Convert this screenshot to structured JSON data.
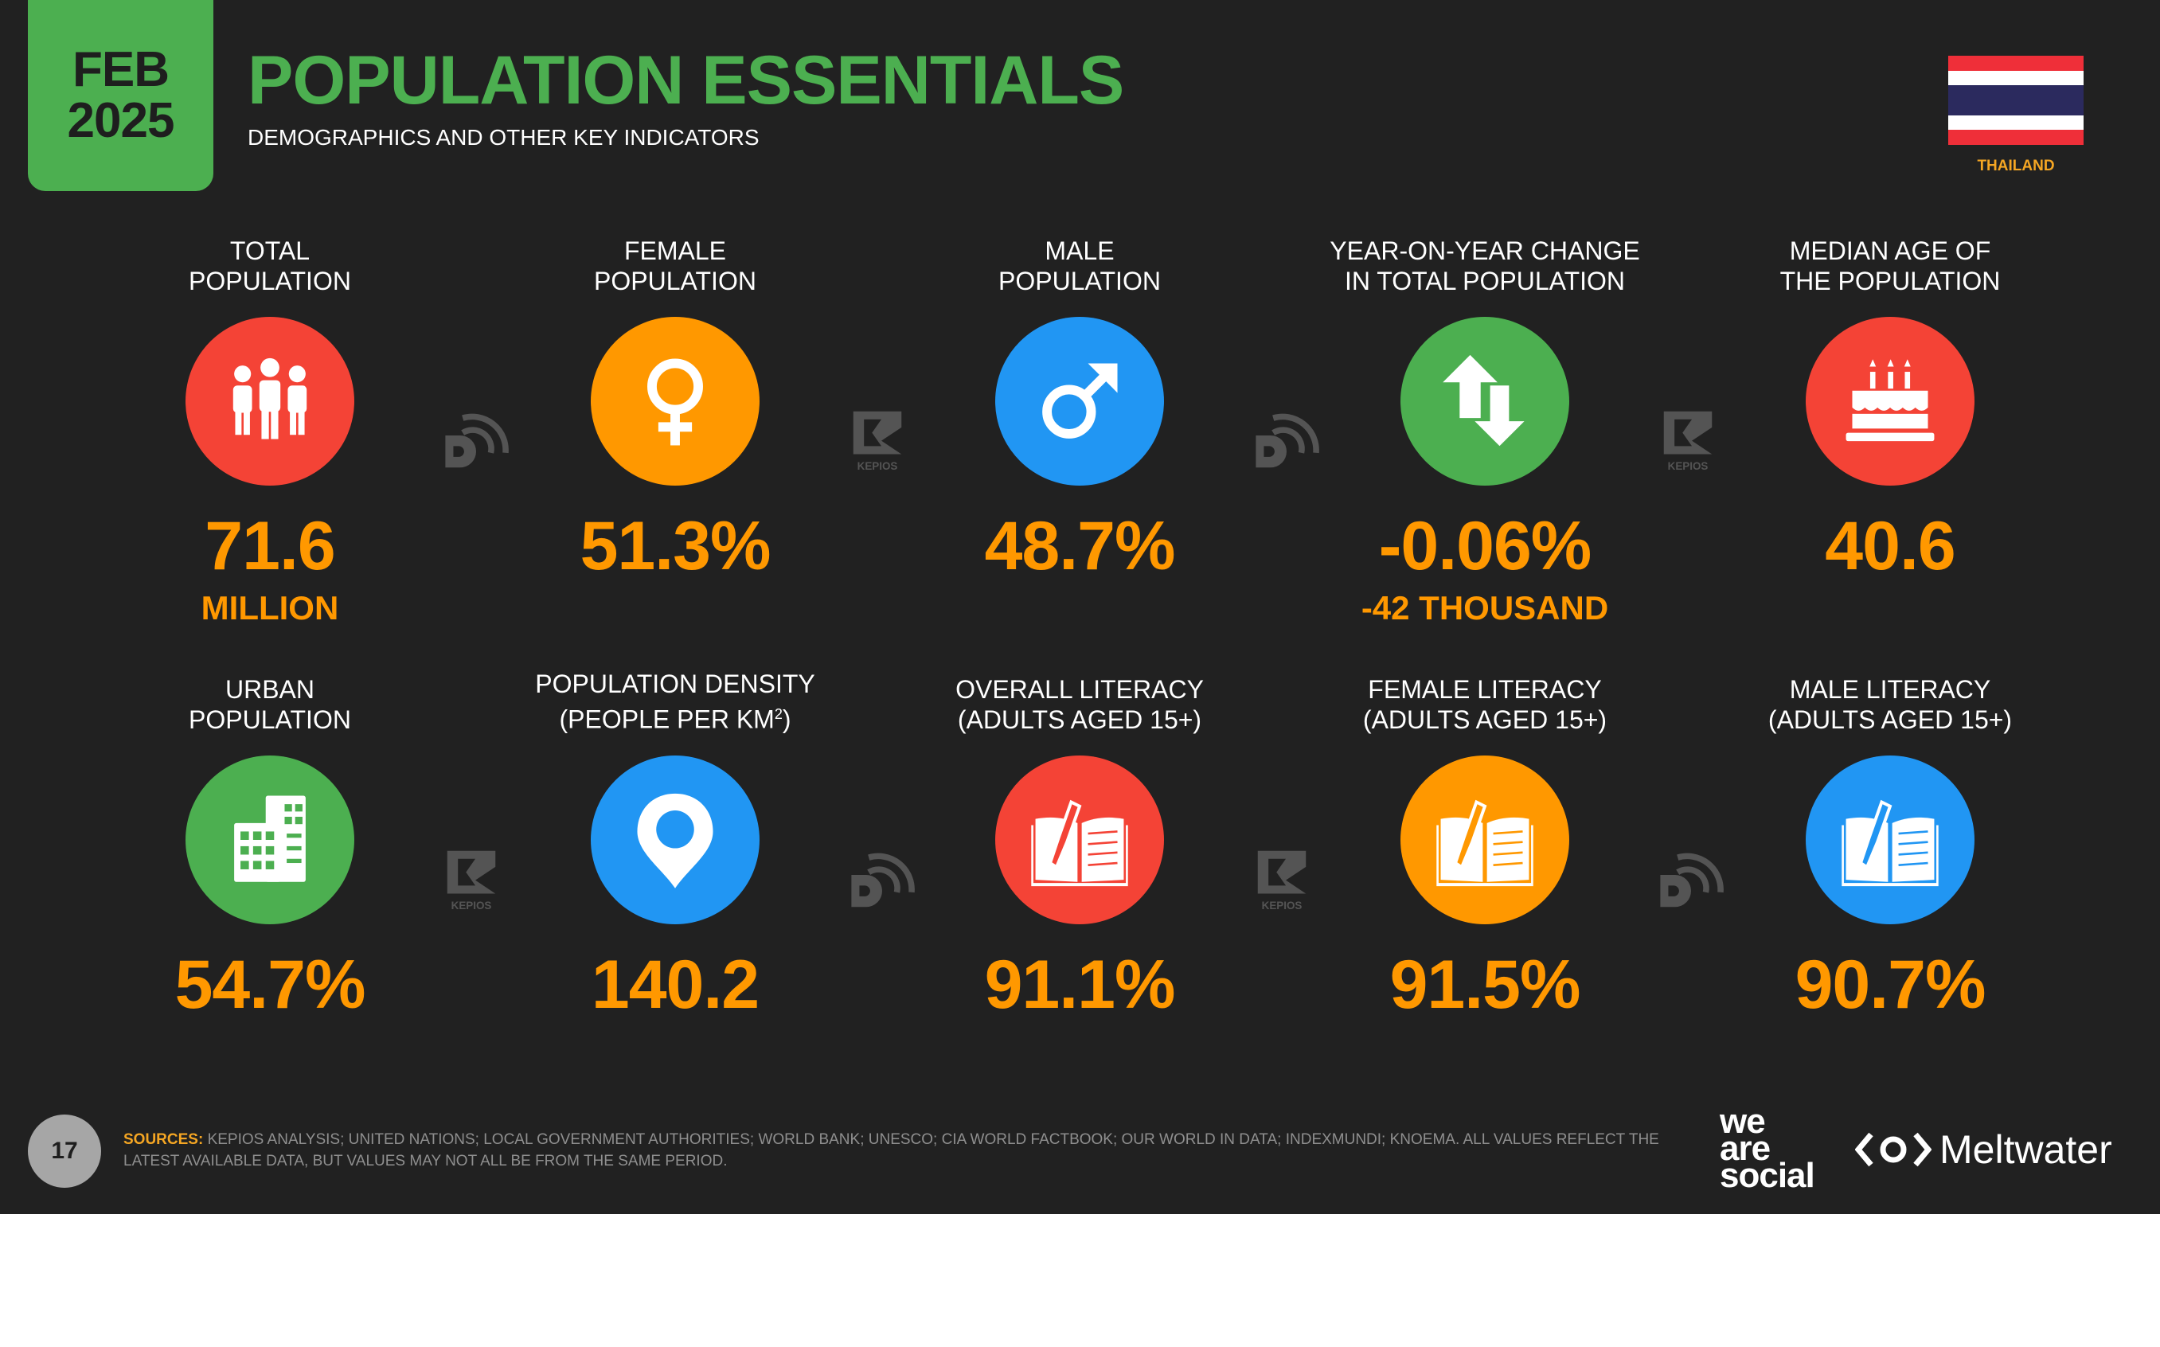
{
  "header": {
    "month": "FEB",
    "year": "2025",
    "title": "POPULATION ESSENTIALS",
    "subtitle": "DEMOGRAPHICS AND OTHER KEY INDICATORS",
    "country": "THAILAND"
  },
  "stats": {
    "total_population": {
      "label_1": "TOTAL",
      "label_2": "POPULATION",
      "value": "71.6",
      "sub": "MILLION",
      "icon": "people-icon"
    },
    "female_population": {
      "label_1": "FEMALE",
      "label_2": "POPULATION",
      "value": "51.3%",
      "icon": "female-symbol-icon"
    },
    "male_population": {
      "label_1": "MALE",
      "label_2": "POPULATION",
      "value": "48.7%",
      "icon": "male-symbol-icon"
    },
    "yoy_change": {
      "label_1": "YEAR-ON-YEAR CHANGE",
      "label_2": "IN TOTAL POPULATION",
      "value": "-0.06%",
      "sub": "-42 THOUSAND",
      "icon": "up-down-arrows-icon"
    },
    "median_age": {
      "label_1": "MEDIAN AGE OF",
      "label_2": "THE POPULATION",
      "value": "40.6",
      "icon": "birthday-cake-icon"
    },
    "urban_population": {
      "label_1": "URBAN",
      "label_2": "POPULATION",
      "value": "54.7%",
      "icon": "buildings-icon"
    },
    "population_density": {
      "label_1": "POPULATION DENSITY",
      "label_2_pre": "(PEOPLE PER KM",
      "label_2_sup": "2",
      "label_2_post": ")",
      "value": "140.2",
      "icon": "map-pin-icon"
    },
    "overall_literacy": {
      "label_1": "OVERALL LITERACY",
      "label_2": "(ADULTS AGED 15+)",
      "value": "91.1%",
      "icon": "book-pencil-icon"
    },
    "female_literacy": {
      "label_1": "FEMALE LITERACY",
      "label_2": "(ADULTS AGED 15+)",
      "value": "91.5%",
      "icon": "book-pencil-icon"
    },
    "male_literacy": {
      "label_1": "MALE LITERACY",
      "label_2": "(ADULTS AGED 15+)",
      "value": "90.7%",
      "icon": "book-pencil-icon"
    }
  },
  "watermarks": {
    "kepios": "KEPIOS"
  },
  "footer": {
    "page_number": "17",
    "sources_label": "SOURCES:",
    "sources_text": "KEPIOS ANALYSIS; UNITED NATIONS; LOCAL GOVERNMENT AUTHORITIES; WORLD BANK; UNESCO; CIA WORLD FACTBOOK; OUR WORLD IN DATA; INDEXMUNDI; KNOEMA. ALL VALUES REFLECT THE LATEST AVAILABLE DATA, BUT VALUES MAY NOT ALL BE FROM THE SAME PERIOD.",
    "brand_1_line_1": "we",
    "brand_1_line_2": "are",
    "brand_1_line_3": "social",
    "brand_2": "Meltwater"
  },
  "colors": {
    "background": "#212121",
    "accent_green": "#4caf50",
    "value_orange": "#ff9800",
    "red": "#f44336",
    "blue": "#2196f3"
  }
}
